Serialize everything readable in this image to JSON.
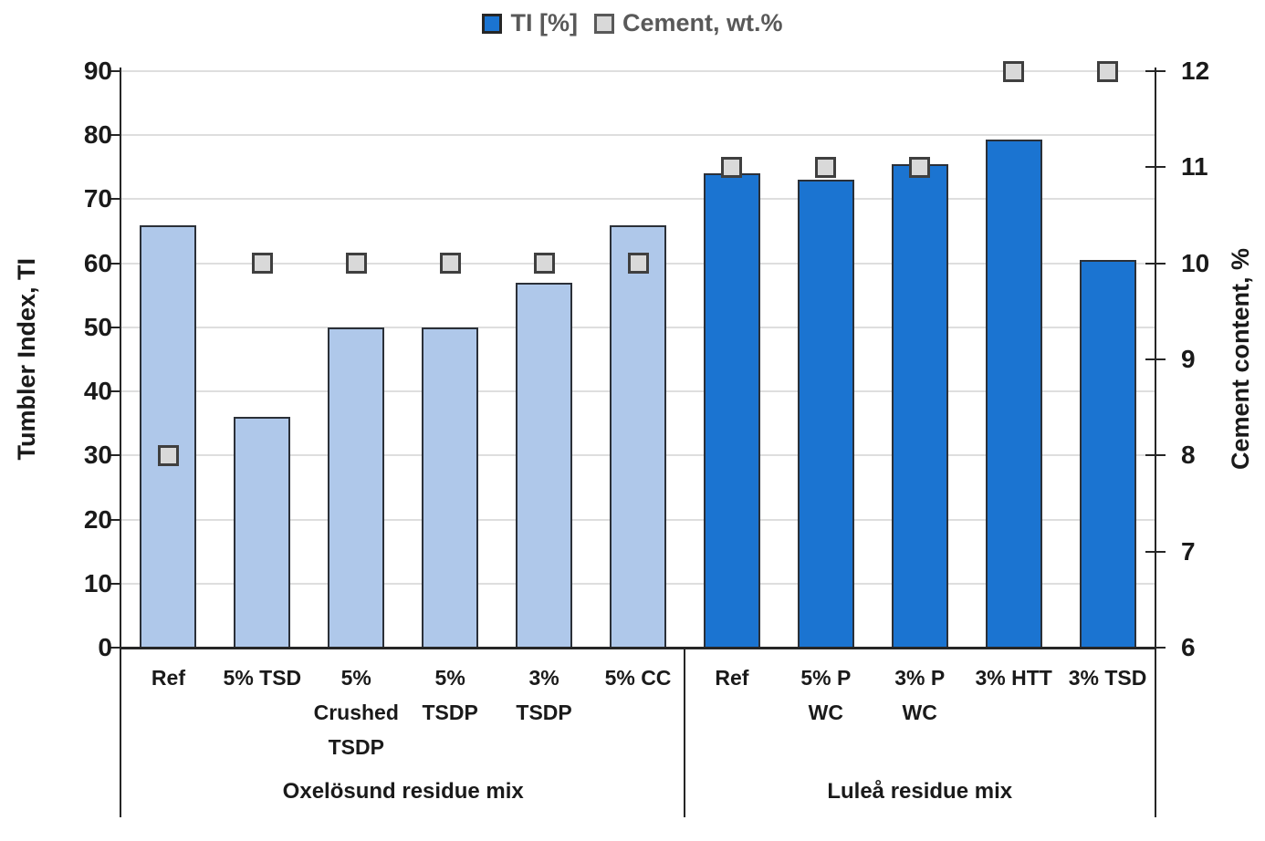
{
  "chart_data": {
    "type": "bar",
    "title": "",
    "legend": [
      {
        "name": "ti-series",
        "label": "TI [%]",
        "swatch_color": "#1b74d1",
        "swatch_border": "#262626"
      },
      {
        "name": "cement-series",
        "label": "Cement, wt.%",
        "swatch_color": "#d9d9d9",
        "swatch_border": "#595959"
      }
    ],
    "left_axis": {
      "title": "Tumbler Index, TI",
      "min": 0,
      "max": 90,
      "step": 10,
      "ticks": [
        "0",
        "10",
        "20",
        "30",
        "40",
        "50",
        "60",
        "70",
        "80",
        "90"
      ]
    },
    "right_axis": {
      "title": "Cement content, %",
      "min": 6,
      "max": 12,
      "step": 1,
      "ticks": [
        "6",
        "7",
        "8",
        "9",
        "10",
        "11",
        "12"
      ]
    },
    "groups": [
      {
        "label": "Oxelösund residue mix",
        "bar_color": "#afc8ea"
      },
      {
        "label": "Luleå residue mix",
        "bar_color": "#1b74d1"
      }
    ],
    "categories": [
      "Ref",
      "5% TSD",
      "5% Crushed TSDP",
      "5% TSDP",
      "3% TSDP",
      "5% CC",
      "Ref",
      "5% P WC",
      "3% P WC",
      "3% HTT",
      "3% TSD"
    ],
    "category_display": [
      {
        "lines": [
          "Ref"
        ],
        "group": 0
      },
      {
        "lines": [
          "5% TSD"
        ],
        "group": 0
      },
      {
        "lines": [
          "5%",
          "Crushed",
          "TSDP"
        ],
        "group": 0
      },
      {
        "lines": [
          "5%",
          "TSDP"
        ],
        "group": 0
      },
      {
        "lines": [
          "3%",
          "TSDP"
        ],
        "group": 0
      },
      {
        "lines": [
          "5% CC"
        ],
        "group": 0
      },
      {
        "lines": [
          "Ref"
        ],
        "group": 1
      },
      {
        "lines": [
          "5% P",
          "WC"
        ],
        "group": 1
      },
      {
        "lines": [
          "3% P",
          "WC"
        ],
        "group": 1
      },
      {
        "lines": [
          "3% HTT"
        ],
        "group": 1
      },
      {
        "lines": [
          "3% TSD"
        ],
        "group": 1
      }
    ],
    "series": [
      {
        "name": "TI [%]",
        "type": "bar",
        "axis": "left",
        "values": [
          66,
          36,
          50,
          50,
          57,
          66,
          74,
          73,
          75.5,
          79.3,
          60.5
        ]
      },
      {
        "name": "Cement, wt.%",
        "type": "square-marker",
        "axis": "right",
        "values": [
          8,
          10,
          10,
          10,
          10,
          10,
          11,
          11,
          11,
          12,
          12
        ]
      }
    ],
    "layout_hints": {
      "grid": "horizontal, every 10 TI units",
      "legend_position": "top-center",
      "left_ylim": [
        0,
        90
      ],
      "right_ylim": [
        6,
        12
      ]
    },
    "colors": {
      "bar_light": "#afc8ea",
      "bar_dark": "#1b74d1",
      "bar_border": "#2b3038",
      "marker_fill": "#d9d9d9",
      "marker_border": "#3f3f3f",
      "gridline": "#dedede",
      "axis": "#262626",
      "legend_text": "#595959",
      "text": "#1a1a1a"
    }
  }
}
